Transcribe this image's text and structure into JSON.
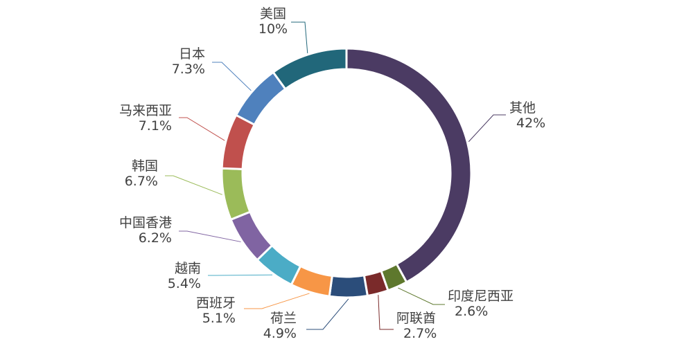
{
  "chart_data": {
    "type": "pie",
    "donut": true,
    "title": "",
    "legend": "none",
    "slices": [
      {
        "name": "其他",
        "value": 42,
        "label": "42%",
        "color": "#4b3b63"
      },
      {
        "name": "印度尼西亚",
        "value": 2.6,
        "label": "2.6%",
        "color": "#5e782d"
      },
      {
        "name": "阿联酋",
        "value": 2.7,
        "label": "2.7%",
        "color": "#7a2a2a"
      },
      {
        "name": "荷兰",
        "value": 4.9,
        "label": "4.9%",
        "color": "#2b4d7a"
      },
      {
        "name": "西班牙",
        "value": 5.1,
        "label": "5.1%",
        "color": "#f79646"
      },
      {
        "name": "越南",
        "value": 5.4,
        "label": "5.4%",
        "color": "#4bacc6"
      },
      {
        "name": "中国香港",
        "value": 6.2,
        "label": "6.2%",
        "color": "#8064a2"
      },
      {
        "name": "韩国",
        "value": 6.7,
        "label": "6.7%",
        "color": "#9bbb59"
      },
      {
        "name": "马来西亚",
        "value": 7.1,
        "label": "7.1%",
        "color": "#c0504d"
      },
      {
        "name": "日本",
        "value": 7.3,
        "label": "7.3%",
        "color": "#4f81bd"
      },
      {
        "name": "美国",
        "value": 10,
        "label": "10%",
        "color": "#21677a"
      }
    ]
  }
}
